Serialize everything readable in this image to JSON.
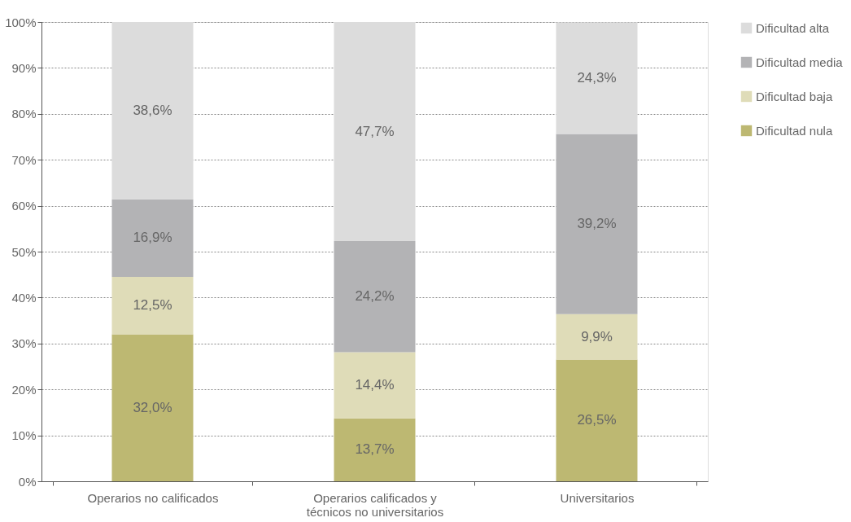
{
  "chart_data": {
    "type": "bar",
    "stacked": true,
    "categories": [
      "Operarios no calificados",
      "Operarios calificados y técnicos no universitarios",
      "Universitarios"
    ],
    "series": [
      {
        "name": "Dificultad nula",
        "color": "#bdb872",
        "values": [
          32.0,
          13.7,
          26.5
        ],
        "value_labels": [
          "32,0%",
          "13,7%",
          "26,5%"
        ]
      },
      {
        "name": "Dificultad baja",
        "color": "#dfdcb8",
        "values": [
          12.5,
          14.4,
          9.9
        ],
        "value_labels": [
          "12,5%",
          "14,4%",
          "9,9%"
        ]
      },
      {
        "name": "Dificultad media",
        "color": "#b3b3b5",
        "values": [
          16.9,
          24.2,
          39.2
        ],
        "value_labels": [
          "16,9%",
          "24,2%",
          "39,2%"
        ]
      },
      {
        "name": "Dificultad alta",
        "color": "#dcdcdc",
        "values": [
          38.6,
          47.7,
          24.3
        ],
        "value_labels": [
          "38,6%",
          "47,7%",
          "24,3%"
        ]
      }
    ],
    "ylim": [
      0,
      100
    ],
    "yticks": [
      {
        "value": 0,
        "label": "0%"
      },
      {
        "value": 10,
        "label": "10%"
      },
      {
        "value": 20,
        "label": "20%"
      },
      {
        "value": 30,
        "label": "30%"
      },
      {
        "value": 40,
        "label": "40%"
      },
      {
        "value": 50,
        "label": "50%"
      },
      {
        "value": 60,
        "label": "60%"
      },
      {
        "value": 70,
        "label": "70%"
      },
      {
        "value": 80,
        "label": "80%"
      },
      {
        "value": 90,
        "label": "90%"
      },
      {
        "value": 100,
        "label": "100%"
      }
    ],
    "grid": "y",
    "legend": "right"
  }
}
